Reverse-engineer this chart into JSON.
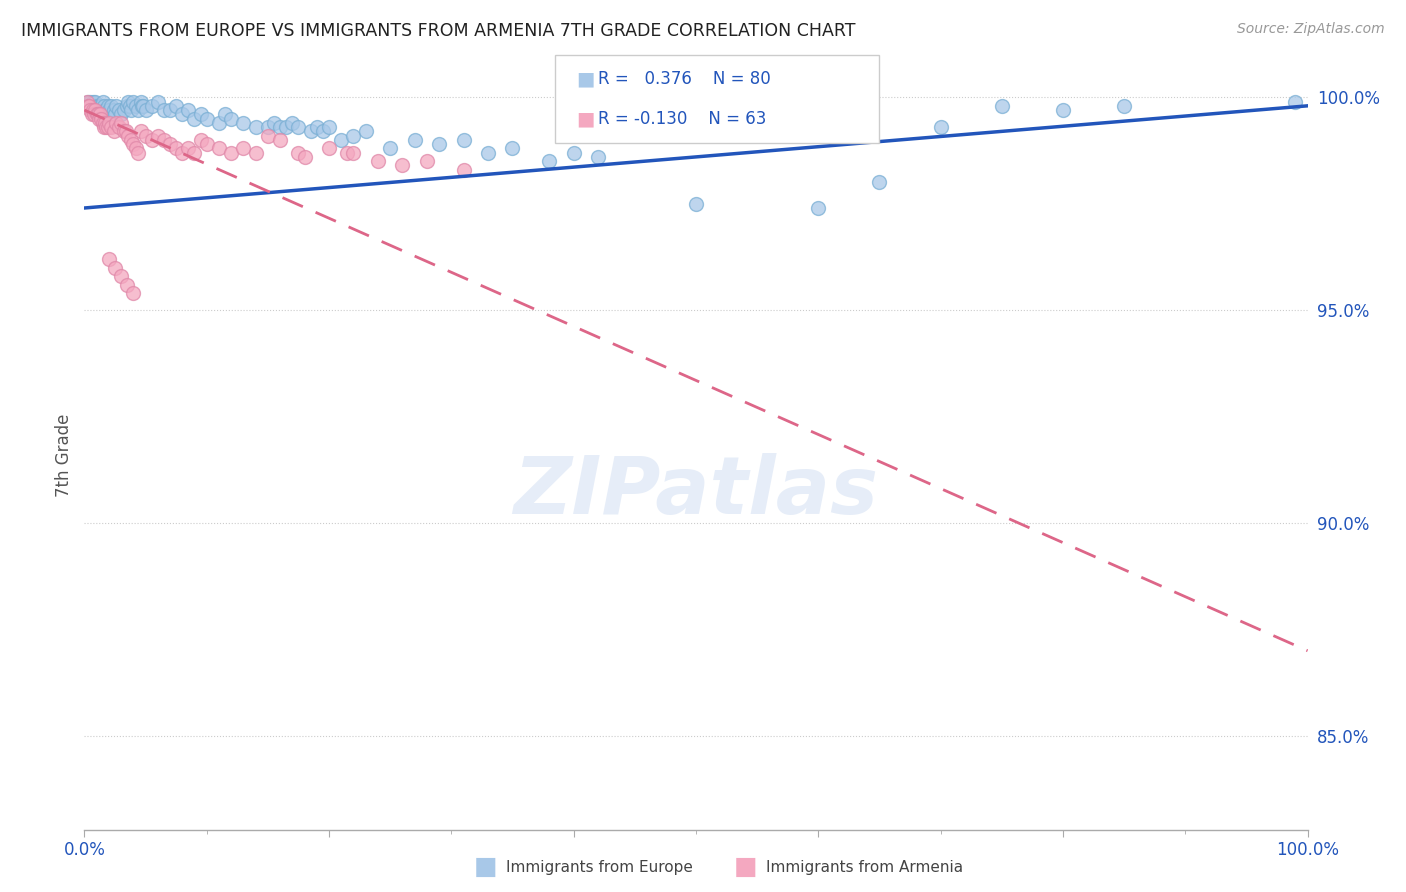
{
  "title": "IMMIGRANTS FROM EUROPE VS IMMIGRANTS FROM ARMENIA 7TH GRADE CORRELATION CHART",
  "source": "Source: ZipAtlas.com",
  "ylabel": "7th Grade",
  "y_ticks_right": [
    0.85,
    0.9,
    0.95,
    1.0
  ],
  "y_tick_labels_right": [
    "85.0%",
    "90.0%",
    "95.0%",
    "100.0%"
  ],
  "legend_blue_R": "0.376",
  "legend_blue_N": "80",
  "legend_pink_R": "-0.130",
  "legend_pink_N": "63",
  "blue_color": "#a8c8e8",
  "pink_color": "#f4a8c0",
  "blue_line_color": "#2255bb",
  "pink_line_color": "#dd6688",
  "watermark": "ZIPatlas",
  "blue_scatter": [
    [
      0.003,
      0.999
    ],
    [
      0.005,
      0.999
    ],
    [
      0.006,
      0.998
    ],
    [
      0.007,
      0.999
    ],
    [
      0.008,
      0.998
    ],
    [
      0.009,
      0.999
    ],
    [
      0.01,
      0.998
    ],
    [
      0.011,
      0.997
    ],
    [
      0.012,
      0.998
    ],
    [
      0.013,
      0.997
    ],
    [
      0.014,
      0.998
    ],
    [
      0.015,
      0.999
    ],
    [
      0.016,
      0.998
    ],
    [
      0.017,
      0.997
    ],
    [
      0.018,
      0.996
    ],
    [
      0.019,
      0.998
    ],
    [
      0.02,
      0.997
    ],
    [
      0.022,
      0.998
    ],
    [
      0.024,
      0.997
    ],
    [
      0.025,
      0.996
    ],
    [
      0.026,
      0.998
    ],
    [
      0.028,
      0.997
    ],
    [
      0.03,
      0.996
    ],
    [
      0.032,
      0.997
    ],
    [
      0.035,
      0.998
    ],
    [
      0.036,
      0.999
    ],
    [
      0.037,
      0.998
    ],
    [
      0.038,
      0.997
    ],
    [
      0.04,
      0.999
    ],
    [
      0.042,
      0.998
    ],
    [
      0.044,
      0.997
    ],
    [
      0.046,
      0.999
    ],
    [
      0.047,
      0.998
    ],
    [
      0.048,
      0.998
    ],
    [
      0.05,
      0.997
    ],
    [
      0.055,
      0.998
    ],
    [
      0.06,
      0.999
    ],
    [
      0.065,
      0.997
    ],
    [
      0.07,
      0.997
    ],
    [
      0.075,
      0.998
    ],
    [
      0.08,
      0.996
    ],
    [
      0.085,
      0.997
    ],
    [
      0.09,
      0.995
    ],
    [
      0.095,
      0.996
    ],
    [
      0.1,
      0.995
    ],
    [
      0.11,
      0.994
    ],
    [
      0.115,
      0.996
    ],
    [
      0.12,
      0.995
    ],
    [
      0.13,
      0.994
    ],
    [
      0.14,
      0.993
    ],
    [
      0.15,
      0.993
    ],
    [
      0.155,
      0.994
    ],
    [
      0.16,
      0.993
    ],
    [
      0.165,
      0.993
    ],
    [
      0.17,
      0.994
    ],
    [
      0.175,
      0.993
    ],
    [
      0.185,
      0.992
    ],
    [
      0.19,
      0.993
    ],
    [
      0.195,
      0.992
    ],
    [
      0.2,
      0.993
    ],
    [
      0.21,
      0.99
    ],
    [
      0.22,
      0.991
    ],
    [
      0.23,
      0.992
    ],
    [
      0.25,
      0.988
    ],
    [
      0.27,
      0.99
    ],
    [
      0.29,
      0.989
    ],
    [
      0.31,
      0.99
    ],
    [
      0.33,
      0.987
    ],
    [
      0.35,
      0.988
    ],
    [
      0.38,
      0.985
    ],
    [
      0.4,
      0.987
    ],
    [
      0.42,
      0.986
    ],
    [
      0.5,
      0.975
    ],
    [
      0.6,
      0.974
    ],
    [
      0.65,
      0.98
    ],
    [
      0.7,
      0.993
    ],
    [
      0.75,
      0.998
    ],
    [
      0.8,
      0.997
    ],
    [
      0.85,
      0.998
    ],
    [
      0.99,
      0.999
    ]
  ],
  "pink_scatter": [
    [
      0.002,
      0.999
    ],
    [
      0.003,
      0.998
    ],
    [
      0.004,
      0.998
    ],
    [
      0.005,
      0.997
    ],
    [
      0.006,
      0.996
    ],
    [
      0.007,
      0.997
    ],
    [
      0.008,
      0.996
    ],
    [
      0.009,
      0.997
    ],
    [
      0.01,
      0.996
    ],
    [
      0.011,
      0.996
    ],
    [
      0.012,
      0.995
    ],
    [
      0.013,
      0.996
    ],
    [
      0.014,
      0.995
    ],
    [
      0.015,
      0.994
    ],
    [
      0.016,
      0.993
    ],
    [
      0.017,
      0.994
    ],
    [
      0.018,
      0.993
    ],
    [
      0.019,
      0.993
    ],
    [
      0.02,
      0.994
    ],
    [
      0.022,
      0.993
    ],
    [
      0.024,
      0.992
    ],
    [
      0.026,
      0.994
    ],
    [
      0.028,
      0.993
    ],
    [
      0.03,
      0.994
    ],
    [
      0.032,
      0.992
    ],
    [
      0.034,
      0.992
    ],
    [
      0.036,
      0.991
    ],
    [
      0.038,
      0.99
    ],
    [
      0.04,
      0.989
    ],
    [
      0.042,
      0.988
    ],
    [
      0.044,
      0.987
    ],
    [
      0.046,
      0.992
    ],
    [
      0.05,
      0.991
    ],
    [
      0.055,
      0.99
    ],
    [
      0.06,
      0.991
    ],
    [
      0.065,
      0.99
    ],
    [
      0.07,
      0.989
    ],
    [
      0.075,
      0.988
    ],
    [
      0.08,
      0.987
    ],
    [
      0.085,
      0.988
    ],
    [
      0.09,
      0.987
    ],
    [
      0.095,
      0.99
    ],
    [
      0.1,
      0.989
    ],
    [
      0.11,
      0.988
    ],
    [
      0.12,
      0.987
    ],
    [
      0.13,
      0.988
    ],
    [
      0.14,
      0.987
    ],
    [
      0.15,
      0.991
    ],
    [
      0.16,
      0.99
    ],
    [
      0.175,
      0.987
    ],
    [
      0.18,
      0.986
    ],
    [
      0.2,
      0.988
    ],
    [
      0.215,
      0.987
    ],
    [
      0.22,
      0.987
    ],
    [
      0.24,
      0.985
    ],
    [
      0.26,
      0.984
    ],
    [
      0.28,
      0.985
    ],
    [
      0.31,
      0.983
    ],
    [
      0.02,
      0.962
    ],
    [
      0.025,
      0.96
    ],
    [
      0.03,
      0.958
    ],
    [
      0.035,
      0.956
    ],
    [
      0.04,
      0.954
    ]
  ],
  "xlim": [
    0.0,
    1.0
  ],
  "ylim": [
    0.828,
    1.004
  ],
  "blue_line_x": [
    0.0,
    1.0
  ],
  "blue_line_y": [
    0.974,
    0.998
  ],
  "pink_line_x": [
    0.0,
    1.0
  ],
  "pink_line_y": [
    0.997,
    0.87
  ]
}
